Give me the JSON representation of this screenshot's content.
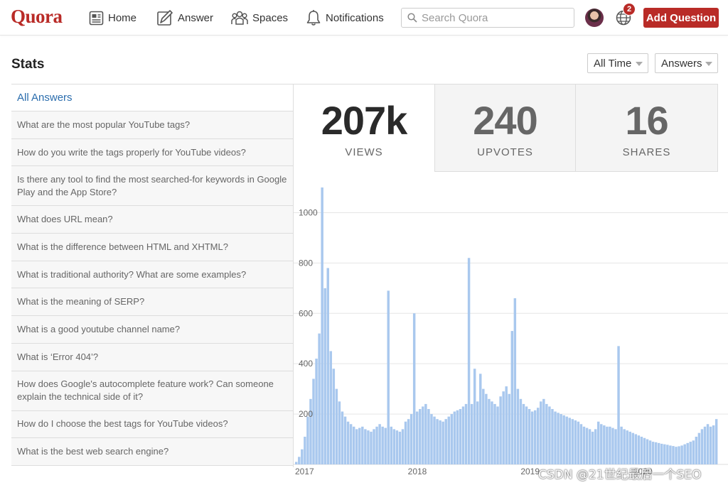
{
  "nav": {
    "logo": "Quora",
    "home": "Home",
    "answer": "Answer",
    "spaces": "Spaces",
    "notifications": "Notifications",
    "search_placeholder": "Search Quora",
    "notification_count": "2",
    "add_question": "Add Question",
    "brand_color": "#b92b27"
  },
  "page": {
    "title": "Stats",
    "time_filter": "All Time",
    "type_filter": "Answers"
  },
  "questions": {
    "all_label": "All Answers",
    "items": [
      "What are the most popular YouTube tags?",
      "How do you write the tags properly for YouTube videos?",
      "Is there any tool to find the most searched-for keywords in Google Play and the App Store?",
      "What does URL mean?",
      "What is the difference between HTML and XHTML?",
      "What is traditional authority? What are some examples?",
      "What is the meaning of SERP?",
      "What is a good youtube channel name?",
      "What is ‘Error 404’?",
      "How does Google's autocomplete feature work? Can someone explain the technical side of it?",
      "How do I choose the best tags for YouTube videos?",
      "What is the best web search engine?"
    ]
  },
  "stats": {
    "views": "207k",
    "views_label": "VIEWS",
    "upvotes": "240",
    "upvotes_label": "UPVOTES",
    "shares": "16",
    "shares_label": "SHARES"
  },
  "chart_data": {
    "type": "bar",
    "bar_color": "#a9c8ee",
    "ylim": [
      0,
      1100
    ],
    "yticks": [
      "1000",
      "800",
      "600",
      "400",
      "200"
    ],
    "xticks": [
      "2017",
      "2018",
      "2019",
      "2020"
    ],
    "x_range": [
      "2017-01",
      "2020-09"
    ],
    "series": [
      {
        "values": [
          10,
          30,
          60,
          110,
          190,
          260,
          340,
          420,
          520,
          1100,
          700,
          780,
          450,
          380,
          300,
          250,
          210,
          190,
          170,
          160,
          150,
          140,
          145,
          150,
          140,
          135,
          130,
          140,
          150,
          160,
          150,
          145,
          690,
          150,
          140,
          135,
          130,
          140,
          170,
          180,
          200,
          600,
          210,
          220,
          230,
          240,
          220,
          200,
          190,
          180,
          175,
          170,
          180,
          190,
          200,
          210,
          215,
          220,
          230,
          240,
          820,
          240,
          380,
          250,
          360,
          300,
          280,
          260,
          250,
          240,
          230,
          270,
          290,
          310,
          280,
          530,
          660,
          300,
          260,
          240,
          230,
          220,
          210,
          215,
          225,
          250,
          260,
          240,
          230,
          220,
          210,
          205,
          200,
          195,
          190,
          185,
          180,
          175,
          170,
          160,
          150,
          145,
          140,
          130,
          140,
          170,
          160,
          155,
          150,
          150,
          145,
          140,
          470,
          150,
          140,
          135,
          130,
          125,
          120,
          115,
          110,
          105,
          100,
          95,
          90,
          88,
          85,
          82,
          80,
          78,
          75,
          73,
          70,
          72,
          75,
          80,
          85,
          90,
          95,
          110,
          125,
          140,
          150,
          160,
          150,
          155,
          180
        ]
      }
    ]
  },
  "watermark": "CSDN @21世纪最后一个SEO"
}
